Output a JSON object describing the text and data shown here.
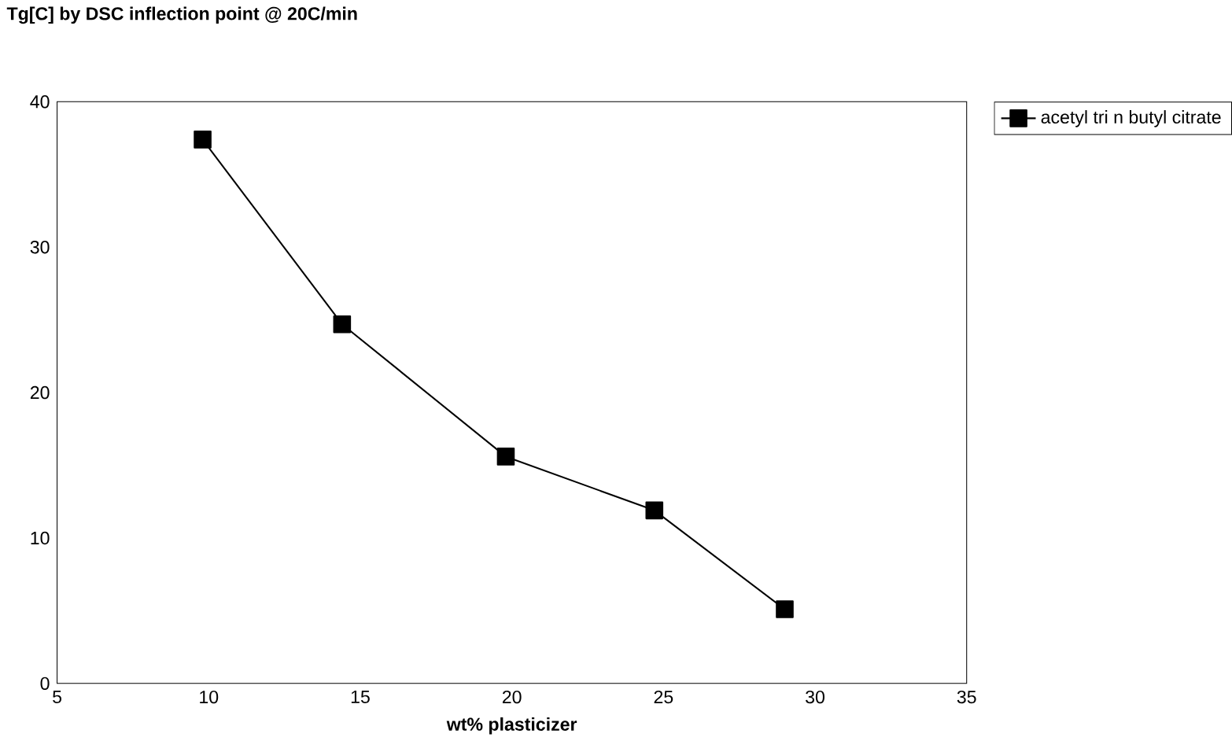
{
  "chart_data": {
    "type": "line",
    "title": "Tg[C] by DSC inflection point @ 20C/min",
    "xlabel": "wt% plasticizer",
    "x": [
      9.8,
      14.4,
      19.8,
      24.7,
      29.0
    ],
    "series": [
      {
        "name": "acetyl tri n butyl citrate",
        "color": "#000000",
        "values": [
          37.4,
          24.7,
          15.6,
          11.9,
          5.1
        ]
      }
    ],
    "xlim": [
      5,
      35
    ],
    "xticks": [
      5,
      10,
      15,
      20,
      25,
      30,
      35
    ],
    "ylim": [
      0,
      40
    ],
    "yticks": [
      0,
      10,
      20,
      30,
      40
    ],
    "grid": false,
    "legend": "top right",
    "marker": "square",
    "line_style": "solid"
  }
}
